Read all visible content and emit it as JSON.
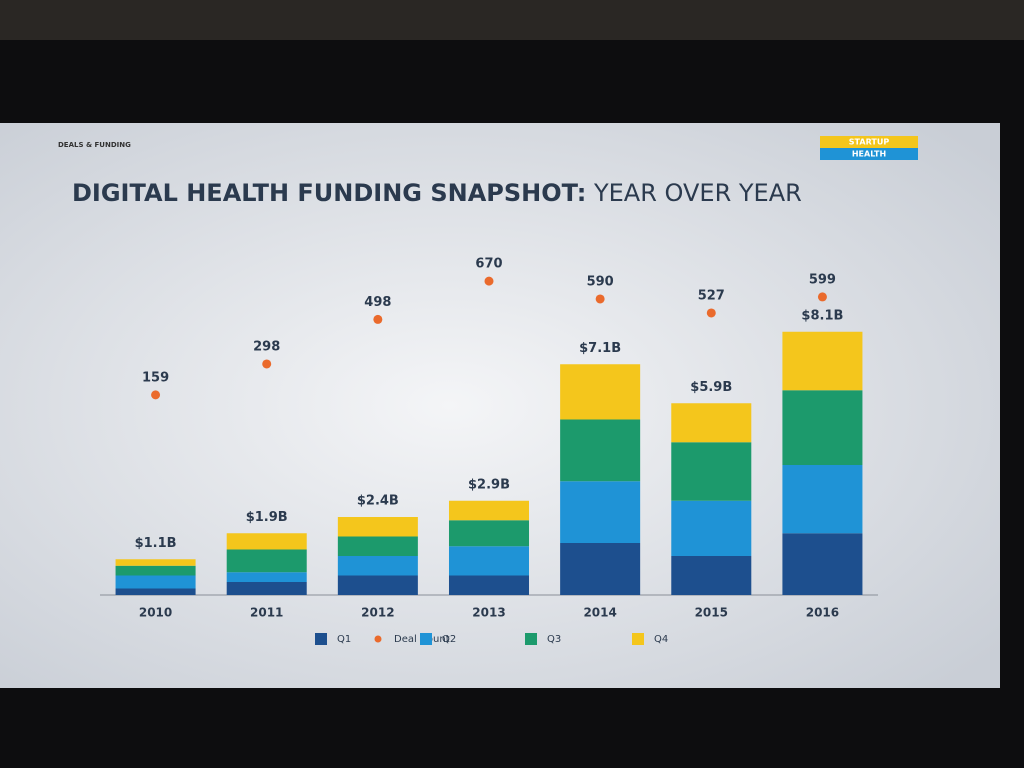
{
  "header": {
    "tab": "DEALS & FUNDING",
    "logo_top": "STARTUP",
    "logo_bottom": "HEALTH"
  },
  "chart_data": {
    "type": "stacked_bar",
    "title_bold": "DIGITAL HEALTH FUNDING SNAPSHOT:",
    "title": "YEAR OVER YEAR",
    "categories": [
      "2010",
      "2011",
      "2012",
      "2013",
      "2014",
      "2015",
      "2016"
    ],
    "series": [
      {
        "name": "Q1",
        "color": "#1d4f8e",
        "values": [
          0.2,
          0.4,
          0.6,
          0.6,
          1.6,
          1.2,
          1.9
        ]
      },
      {
        "name": "Deal Count",
        "color": "#ea6a2c",
        "axis": "y2",
        "type": "dot",
        "values": [
          159,
          298,
          498,
          670,
          590,
          527,
          599
        ]
      },
      {
        "name": "Q2",
        "color": "#1f93d6",
        "values": [
          0.4,
          0.3,
          0.6,
          0.9,
          1.9,
          1.7,
          2.1
        ]
      },
      {
        "name": "Q3",
        "color": "#1c9a6c",
        "values": [
          0.3,
          0.7,
          0.6,
          0.8,
          1.9,
          1.8,
          2.3
        ]
      },
      {
        "name": "Q4",
        "color": "#f4c61c",
        "values": [
          0.2,
          0.5,
          0.6,
          0.6,
          1.7,
          1.2,
          1.8
        ]
      }
    ],
    "totals": {
      "values": [
        1.1,
        1.9,
        2.4,
        2.9,
        7.1,
        5.9,
        8.1
      ],
      "value_labels": [
        "$1.1B",
        "$1.9B",
        "$2.4B",
        "$2.9B",
        "$7.1B",
        "$5.9B",
        "$8.1B"
      ]
    },
    "ylim": [
      0,
      10
    ],
    "y2lim": [
      -740,
      720
    ],
    "grid": false
  }
}
